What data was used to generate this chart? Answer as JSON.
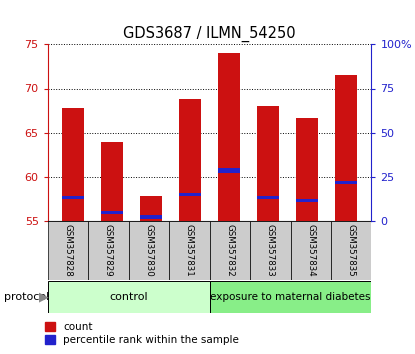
{
  "title": "GDS3687 / ILMN_54250",
  "categories": [
    "GSM357828",
    "GSM357829",
    "GSM357830",
    "GSM357831",
    "GSM357832",
    "GSM357833",
    "GSM357834",
    "GSM357835"
  ],
  "red_values": [
    67.8,
    64.0,
    57.8,
    68.8,
    74.0,
    68.0,
    66.7,
    71.5
  ],
  "blue_values_abs": [
    57.5,
    55.8,
    55.3,
    57.8,
    60.5,
    57.5,
    57.2,
    59.2
  ],
  "blue_heights": [
    0.35,
    0.35,
    0.35,
    0.35,
    0.5,
    0.35,
    0.35,
    0.35
  ],
  "ylim": [
    55,
    75
  ],
  "y2lim": [
    0,
    100
  ],
  "yticks": [
    55,
    60,
    65,
    70,
    75
  ],
  "y2ticks": [
    0,
    25,
    50,
    75,
    100
  ],
  "y2ticklabels": [
    "0",
    "25",
    "50",
    "75",
    "100%"
  ],
  "bar_width": 0.55,
  "red_color": "#cc1111",
  "blue_color": "#2222cc",
  "control_label": "control",
  "treatment_label": "exposure to maternal diabetes",
  "protocol_label": "protocol",
  "legend_red": "count",
  "legend_blue": "percentile rank within the sample",
  "control_color": "#ccffcc",
  "treatment_color": "#88ee88",
  "xticklabel_area_color": "#cccccc",
  "fig_width": 4.15,
  "fig_height": 3.54,
  "dpi": 100
}
